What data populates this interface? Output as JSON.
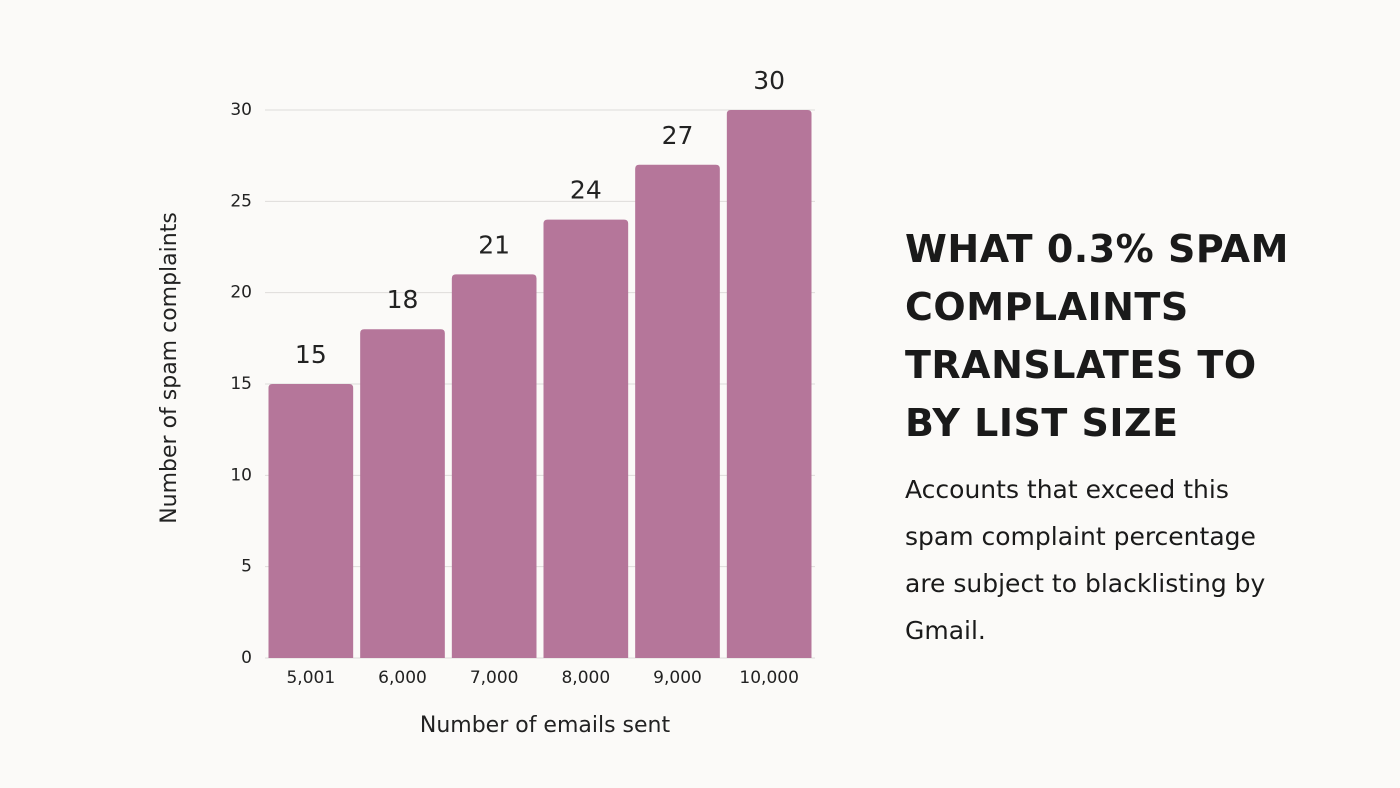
{
  "chart_data": {
    "type": "bar",
    "title": "WHAT 0.3% SPAM COMPLAINTS TRANSLATES TO BY LIST SIZE",
    "subtitle": "Accounts that exceed this spam complaint percentage are subject to blacklisting by Gmail.",
    "x_label": "Number of emails sent",
    "y_label": "Number of spam complaints",
    "categories": [
      "5,001",
      "6,000",
      "7,000",
      "8,000",
      "9,000",
      "10,000"
    ],
    "values": [
      15,
      18,
      21,
      24,
      27,
      30
    ],
    "color": "#b5769a",
    "ylim": [
      0,
      30
    ],
    "yticks": [
      0,
      5,
      10,
      15,
      20,
      25,
      30
    ],
    "grid": true
  }
}
